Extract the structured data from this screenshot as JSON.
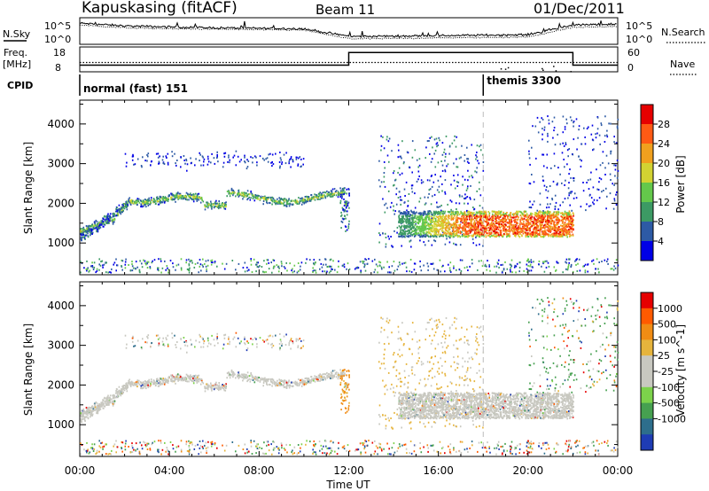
{
  "header": {
    "station": "Kapuskasing (fitACF)",
    "beam": "Beam 11",
    "date": "01/Dec/2011"
  },
  "left_labels": {
    "nsky": "N.Sky",
    "freq_line1": "Freq.",
    "freq_line2": "[MHz]",
    "cpid": "CPID"
  },
  "right_labels": {
    "nsearch": "N.Search",
    "nave": "Nave"
  },
  "cpid_segments": [
    {
      "label": "normal (fast) 151",
      "start_hour": 0
    },
    {
      "label": "themis 3300",
      "start_hour": 18
    }
  ],
  "x_axis": {
    "title": "Time UT",
    "range_hours": [
      0,
      24
    ],
    "ticks": [
      "00:00",
      "04:00",
      "08:00",
      "12:00",
      "16:00",
      "20:00",
      "00:00"
    ]
  },
  "chart_data": [
    {
      "type": "line",
      "name": "noise",
      "left_label": "N.Sky",
      "right_label": "N.Search",
      "left_ticks": [
        "10^5",
        "10^0"
      ],
      "right_ticks": [
        "10^5",
        "10^0"
      ],
      "x_hours": [
        0,
        2,
        4,
        6,
        8,
        10,
        12,
        14,
        16,
        18,
        20,
        22,
        24
      ],
      "series": [
        {
          "name": "N.Sky",
          "values": [
            4.2,
            3.6,
            3.4,
            3.2,
            3.1,
            3.0,
            1.3,
            1.4,
            1.5,
            1.6,
            1.7,
            3.8,
            4.0
          ]
        },
        {
          "name": "N.Search",
          "values": [
            3.8,
            3.2,
            3.0,
            2.9,
            2.8,
            2.7,
            0.8,
            0.9,
            1.0,
            1.1,
            1.2,
            3.3,
            3.5
          ]
        }
      ]
    },
    {
      "type": "line",
      "name": "frequency-nave",
      "left_ticks": [
        "18",
        "8"
      ],
      "right_ticks": [
        "60",
        "0"
      ],
      "freq_range": [
        8,
        18
      ],
      "nave_range": [
        0,
        60
      ],
      "freq_steps": [
        {
          "from_hour": 0,
          "to_hour": 12,
          "freq": 10.5
        },
        {
          "from_hour": 12,
          "to_hour": 22,
          "freq": 16.0
        },
        {
          "from_hour": 22,
          "to_hour": 24,
          "freq": 10.5
        }
      ],
      "nave_level": 22
    },
    {
      "type": "heatmap",
      "name": "power",
      "ylabel": "Slant Range [km]",
      "yrange": [
        200,
        4600
      ],
      "yticks": [
        1000,
        2000,
        3000,
        4000
      ],
      "colorbar_label": "Power [dB]",
      "colorbar_ticks": [
        4,
        8,
        12,
        16,
        20,
        24,
        28
      ],
      "colorbar_range": [
        0,
        32
      ],
      "colors": [
        "#0000e6",
        "#2d5aa5",
        "#3c9a64",
        "#64c84b",
        "#d2d232",
        "#f0a01e",
        "#ff5a14",
        "#e60000"
      ]
    },
    {
      "type": "heatmap",
      "name": "velocity",
      "ylabel": "Slant Range [km]",
      "yrange": [
        200,
        4600
      ],
      "yticks": [
        1000,
        2000,
        3000,
        4000
      ],
      "colorbar_label": "Velocity [m s^-1]",
      "colorbar_ticks": [
        "1000",
        "500",
        "100",
        "25",
        "-25",
        "-100",
        "-500",
        "-1000"
      ],
      "colors": [
        "#1e3cb4",
        "#2d6e8c",
        "#46a050",
        "#7cd24b",
        "#c8c8c0",
        "#c8c8c0",
        "#e6b43c",
        "#f08c14",
        "#ff5a00",
        "#e60000"
      ]
    }
  ]
}
